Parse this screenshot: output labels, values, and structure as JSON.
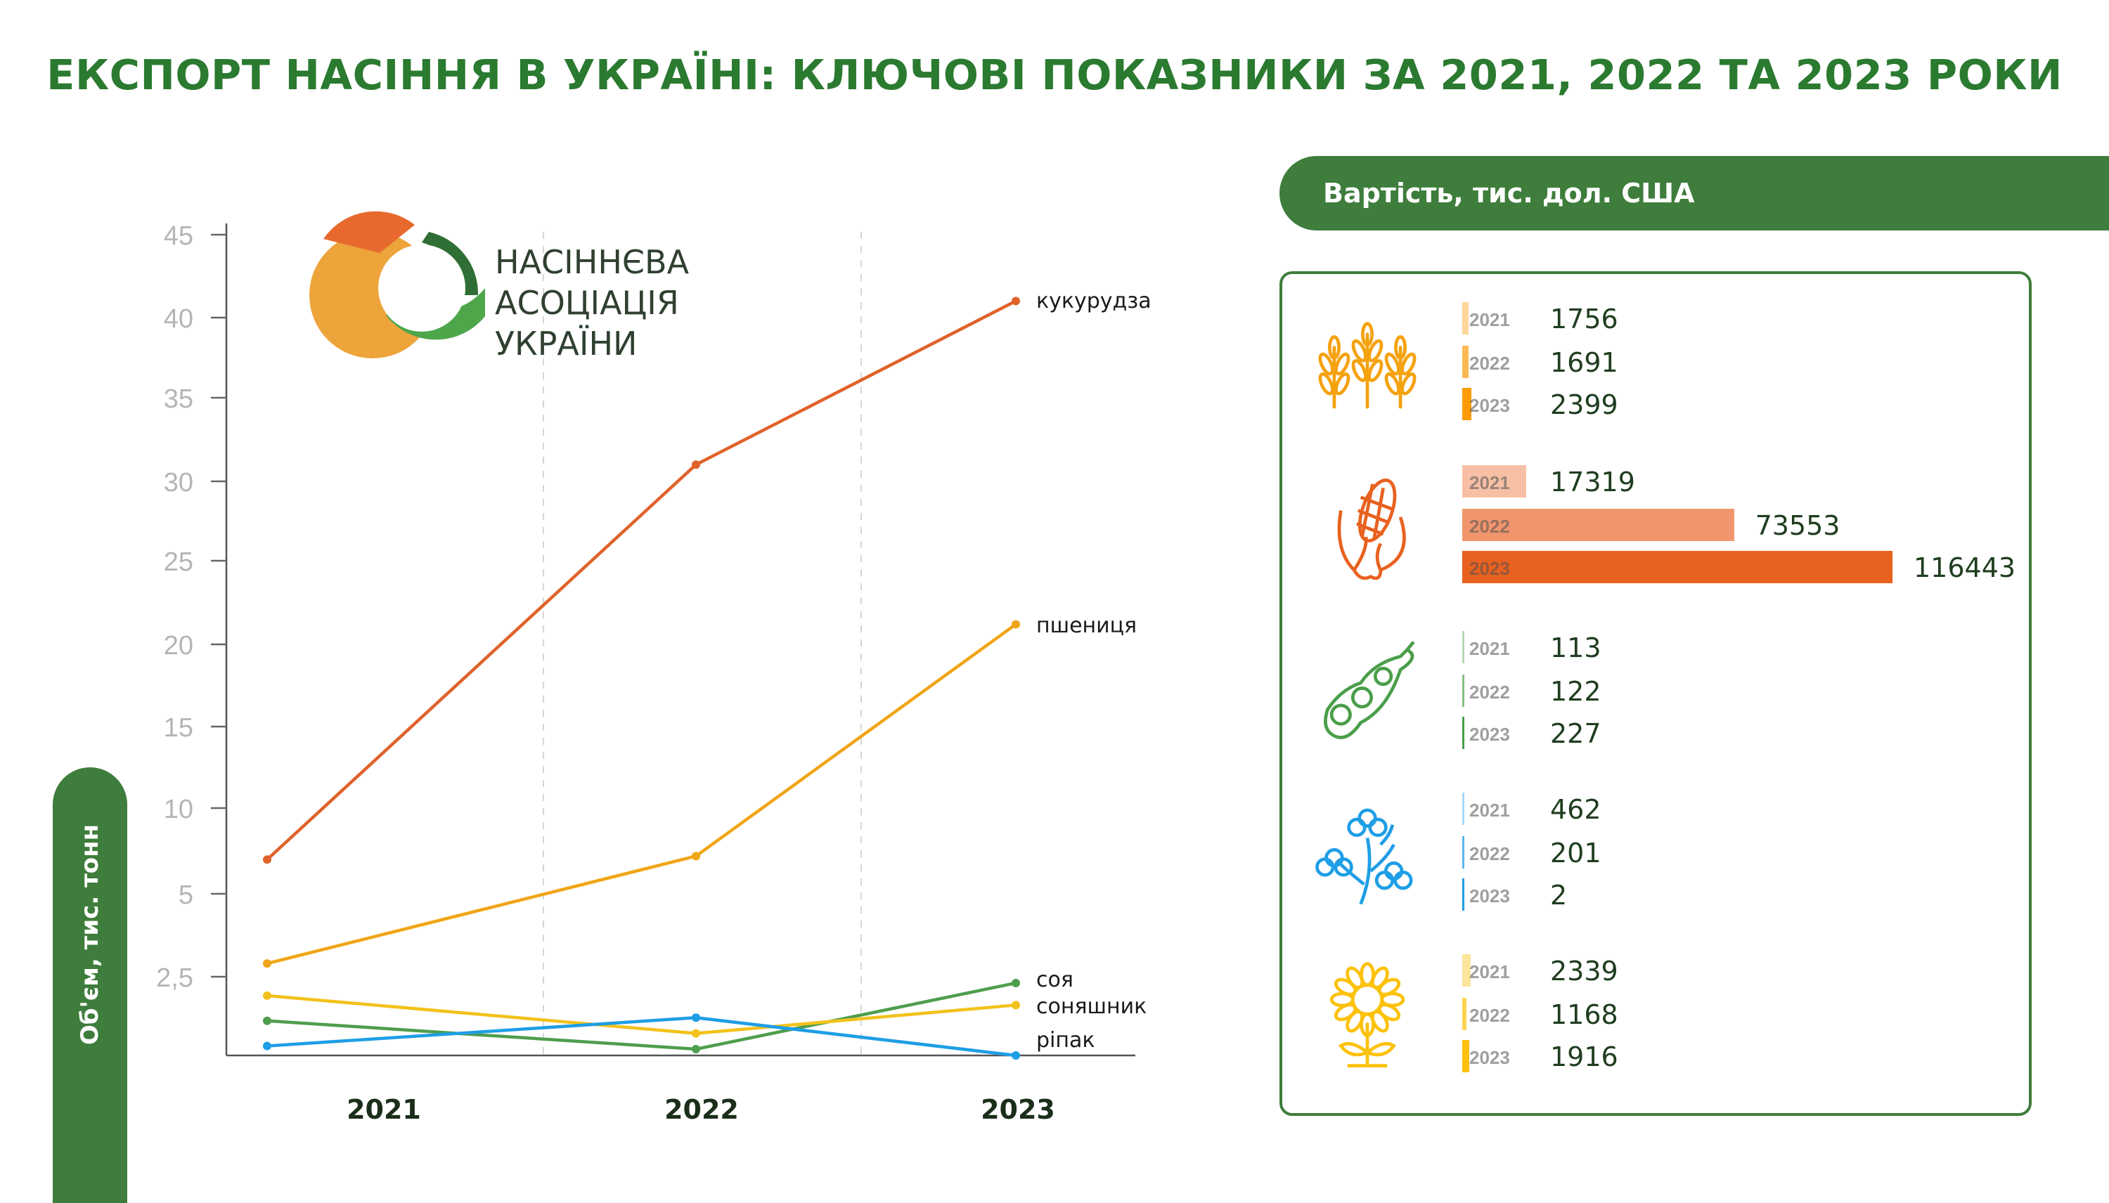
{
  "title": "ЕКСПОРТ НАСІННЯ В УКРАЇНІ: КЛЮЧОВІ ПОКАЗНИКИ ЗА 2021, 2022 ТА 2023 РОКИ",
  "logo": {
    "line1": "НАСІННЄВА",
    "line2": "АСОЦІАЦІЯ",
    "line3": "УКРАЇНИ"
  },
  "value_panel": {
    "header": "Вартість, тис. дол. США"
  },
  "chart_data": [
    {
      "type": "line",
      "ylabel": "Об'єм, тис. тонн",
      "x": [
        "2021",
        "2022",
        "2023"
      ],
      "yticks": [
        "45",
        "40",
        "35",
        "30",
        "25",
        "20",
        "15",
        "10",
        "5",
        "2,5"
      ],
      "series": [
        {
          "name": "кукурудза",
          "color": "#e0622a",
          "values": [
            7,
            31,
            41
          ]
        },
        {
          "name": "пшениця",
          "color": "#f0a516",
          "values": [
            2.9,
            7.2,
            21.2
          ]
        },
        {
          "name": "соя",
          "color": "#4e9e4e",
          "values": [
            1.1,
            0.2,
            2.3
          ]
        },
        {
          "name": "соняшник",
          "color": "#f2c21b",
          "values": [
            1.9,
            0.7,
            1.6
          ]
        },
        {
          "name": "ріпак",
          "color": "#1e9ee6",
          "values": [
            0.3,
            1.2,
            0
          ]
        }
      ],
      "grid": "vertical dashed"
    },
    {
      "type": "bar",
      "title": "Вартість, тис. дол. США",
      "categories": [
        "2021",
        "2022",
        "2023"
      ],
      "groups": [
        {
          "icon": "wheat-icon",
          "colors": [
            "#fdd79a",
            "#fdb953",
            "#fd9b04"
          ],
          "values": [
            1756,
            1691,
            2399
          ]
        },
        {
          "icon": "corn-icon",
          "colors": [
            "#f7c0a5",
            "#f1956d",
            "#e8611f"
          ],
          "values": [
            17319,
            73553,
            116443
          ]
        },
        {
          "icon": "soybean-icon",
          "colors": [
            "#b6d9b4",
            "#84c084",
            "#4a9e4a"
          ],
          "values": [
            113,
            122,
            227
          ]
        },
        {
          "icon": "rapeseed-icon",
          "colors": [
            "#a6d6f7",
            "#5bb4ef",
            "#1e9ee6"
          ],
          "values": [
            462,
            201,
            2
          ]
        },
        {
          "icon": "sunflower-icon",
          "colors": [
            "#fde59a",
            "#fcd452",
            "#fcc10a"
          ],
          "values": [
            2339,
            1168,
            1916
          ]
        }
      ]
    }
  ]
}
